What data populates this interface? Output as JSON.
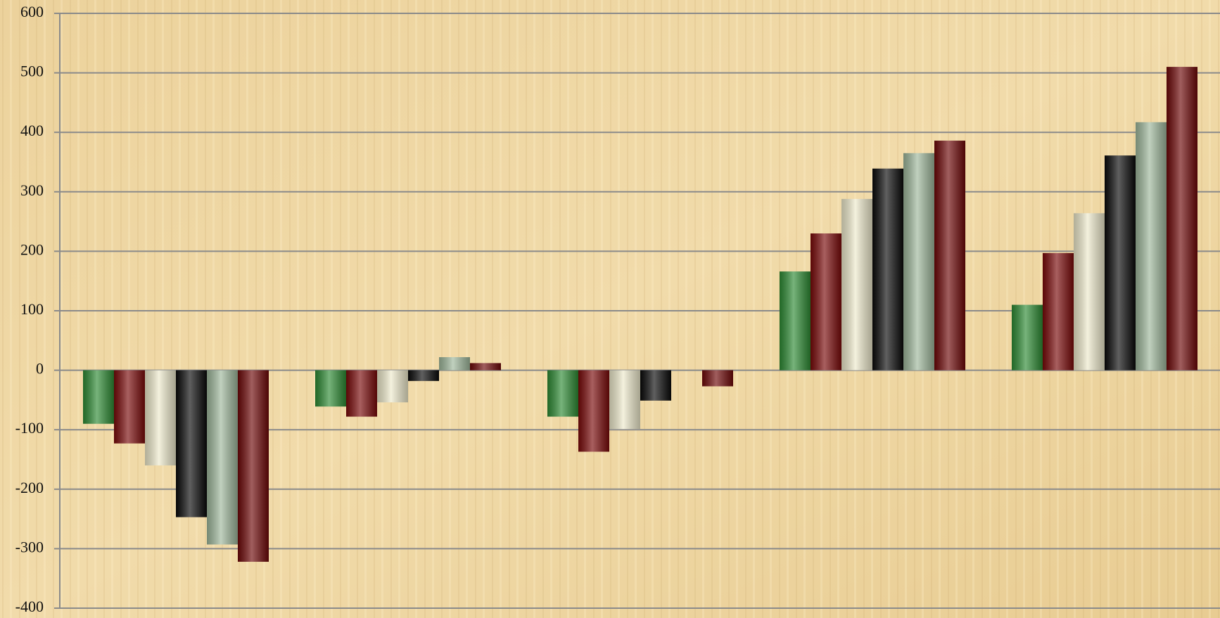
{
  "chart_data": {
    "type": "bar",
    "categories": [
      null,
      null,
      null,
      null,
      null
    ],
    "series": [
      {
        "color": "#2e8b34",
        "values": [
          -90,
          -61,
          -78,
          166,
          110
        ]
      },
      {
        "color": "#7a0a0a",
        "values": [
          -123,
          -78,
          -137,
          230,
          197
        ]
      },
      {
        "color": "#eeeacc",
        "values": [
          -160,
          -54,
          -99,
          288,
          264
        ]
      },
      {
        "color": "#0a0a0a",
        "values": [
          -247,
          -18,
          -51,
          339,
          361
        ]
      },
      {
        "color": "#9fb89c",
        "values": [
          -293,
          22,
          0,
          365,
          417
        ]
      },
      {
        "color": "#6e0808",
        "values": [
          -322,
          12,
          -27,
          386,
          510
        ]
      }
    ],
    "ylim": [
      -400,
      600
    ],
    "yticks": [
      -400,
      -300,
      -200,
      -100,
      0,
      100,
      200,
      300,
      400,
      500,
      600
    ],
    "grid": true
  }
}
